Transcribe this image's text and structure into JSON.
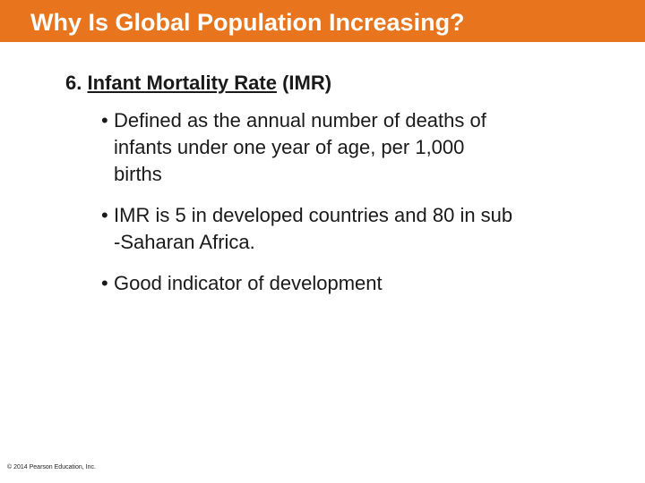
{
  "slide": {
    "title": "Why Is Global Population Increasing?",
    "heading": {
      "number": "6.",
      "underlined": "Infant Mortality Rate",
      "rest": " (IMR)"
    },
    "bullets": [
      {
        "symbol": "•",
        "lines": [
          "Defined as the annual number of deaths of",
          "infants under one year of age, per 1,000",
          "births"
        ]
      },
      {
        "symbol": "•",
        "lines": [
          "IMR is 5 in developed countries and 80 in sub",
          "-Saharan Africa."
        ]
      },
      {
        "symbol": "•",
        "lines": [
          "Good indicator of development"
        ]
      }
    ],
    "footer": "© 2014 Pearson Education, Inc.",
    "colors": {
      "title_bar": "#e8741d",
      "title_text": "#ffffff",
      "body_text": "#1a1a1a"
    }
  }
}
